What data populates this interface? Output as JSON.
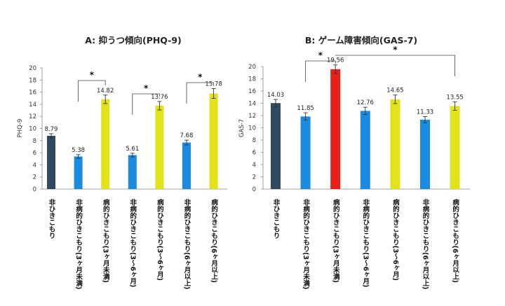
{
  "chart_data": [
    {
      "type": "bar",
      "title": "A: 抑うつ傾向(PHQ-9)",
      "ylabel": "PHQ-9",
      "ylim": [
        0,
        20
      ],
      "yticks": [
        "0",
        "2",
        "4",
        "6",
        "8",
        "10",
        "12",
        "14",
        "16",
        "18",
        "20"
      ],
      "categories": [
        "非ひきこもり",
        "非病的ひきこもり(3ヶ月未満)",
        "病的ひきこもり(3ヶ月未満)",
        "非病的ひきこもり(3〜6ヶ月)",
        "病的ひきこもり(3〜6ヶ月)",
        "非病的ひきこもり(6ヶ月以上)",
        "病的ひきこもり(6ヶ月以上)"
      ],
      "values": [
        8.79,
        5.38,
        14.82,
        5.61,
        13.76,
        7.68,
        15.78
      ],
      "value_labels": [
        "8.79",
        "5.38",
        "14.82",
        "5.61",
        "13.76",
        "7.68",
        "15.78"
      ],
      "errors": [
        0.35,
        0.3,
        0.7,
        0.3,
        0.7,
        0.4,
        0.8
      ],
      "colors": [
        "#2e4a5e",
        "#1a8be0",
        "#e2e21a",
        "#1a8be0",
        "#e2e21a",
        "#1a8be0",
        "#e2e21a"
      ],
      "significance": [
        {
          "from": 1,
          "to": 2,
          "label": "*"
        },
        {
          "from": 3,
          "to": 4,
          "label": "*"
        },
        {
          "from": 5,
          "to": 6,
          "label": "*"
        }
      ]
    },
    {
      "type": "bar",
      "title": "B: ゲーム障害傾向(GAS-7)",
      "ylabel": "GAS-7",
      "ylim": [
        0,
        20
      ],
      "yticks": [
        "0",
        "2",
        "4",
        "6",
        "8",
        "10",
        "12",
        "14",
        "16",
        "18",
        "20"
      ],
      "categories": [
        "非ひきこもり",
        "非病的ひきこもり(3ヶ月未満)",
        "病的ひきこもり(3ヶ月未満)",
        "非病的ひきこもり(3〜6ヶ月)",
        "病的ひきこもり(3〜6ヶ月)",
        "非病的ひきこもり(6ヶ月以上)",
        "病的ひきこもり(6ヶ月以上)"
      ],
      "values": [
        14.03,
        11.85,
        19.56,
        12.76,
        14.65,
        11.33,
        13.55
      ],
      "value_labels": [
        "14.03",
        "11.85",
        "19.56",
        "12.76",
        "14.65",
        "11.33",
        "13.55"
      ],
      "errors": [
        0.6,
        0.6,
        0.7,
        0.6,
        0.7,
        0.5,
        0.7
      ],
      "colors": [
        "#2e4a5e",
        "#1a8be0",
        "#e8201a",
        "#1a8be0",
        "#e2e21a",
        "#1a8be0",
        "#e2e21a"
      ],
      "significance": [
        {
          "from": 1,
          "to": 2,
          "label": "*"
        },
        {
          "from": 2,
          "to": 6,
          "label": "*"
        }
      ]
    }
  ]
}
